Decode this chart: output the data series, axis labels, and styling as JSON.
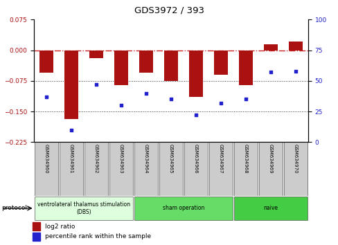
{
  "title": "GDS3972 / 393",
  "samples": [
    "GSM634960",
    "GSM634961",
    "GSM634962",
    "GSM634963",
    "GSM634964",
    "GSM634965",
    "GSM634966",
    "GSM634967",
    "GSM634968",
    "GSM634969",
    "GSM634970"
  ],
  "log2_ratio": [
    -0.055,
    -0.168,
    -0.02,
    -0.085,
    -0.055,
    -0.075,
    -0.115,
    -0.06,
    -0.085,
    0.015,
    0.022
  ],
  "percentile_rank": [
    37,
    10,
    47,
    30,
    40,
    35,
    22,
    32,
    35,
    57,
    58
  ],
  "ylim_left": [
    -0.225,
    0.075
  ],
  "ylim_right": [
    0,
    100
  ],
  "yticks_left": [
    0.075,
    0,
    -0.075,
    -0.15,
    -0.225
  ],
  "yticks_right": [
    100,
    75,
    50,
    25,
    0
  ],
  "bar_color": "#AA1111",
  "dot_color": "#2222CC",
  "zero_line_color": "#CC2222",
  "dotted_line_color": "#333333",
  "protocol_groups": [
    {
      "label": "ventrolateral thalamus stimulation\n(DBS)",
      "start": 0,
      "end": 3,
      "color": "#ddffdd"
    },
    {
      "label": "sham operation",
      "start": 4,
      "end": 7,
      "color": "#66dd66"
    },
    {
      "label": "naive",
      "start": 8,
      "end": 10,
      "color": "#44cc44"
    }
  ],
  "sample_box_color": "#cccccc",
  "legend_bar_label": "log2 ratio",
  "legend_dot_label": "percentile rank within the sample",
  "protocol_label": "protocol"
}
